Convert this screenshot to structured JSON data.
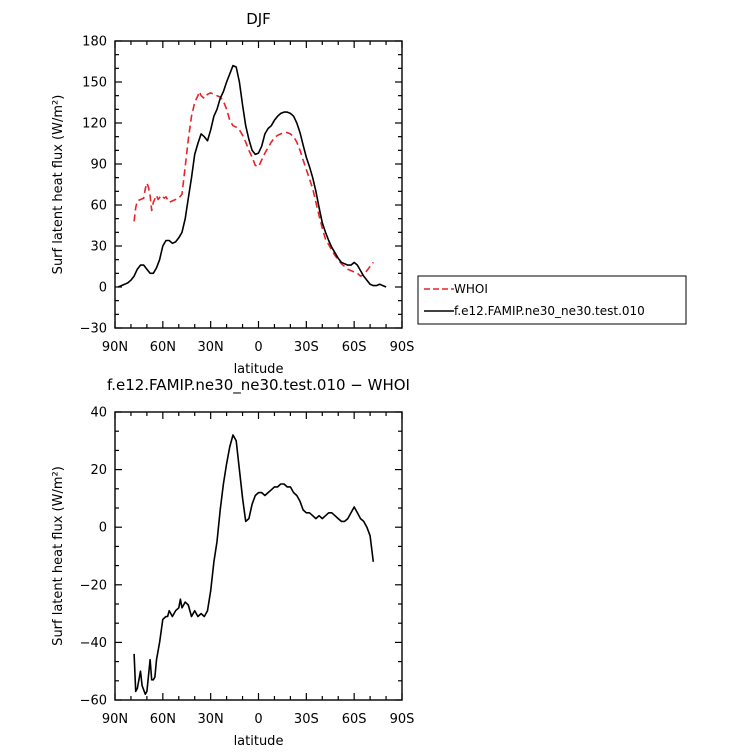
{
  "chart_data": [
    {
      "type": "line",
      "title": "DJF",
      "xlabel": "latitude",
      "ylabel": "Surf latent heat flux (W/m²)",
      "xlim": [
        -90,
        90
      ],
      "ylim": [
        -30,
        180
      ],
      "x_tick_values": [
        -90,
        -60,
        -30,
        0,
        30,
        60,
        90
      ],
      "x_tick_labels": [
        "90N",
        "60N",
        "30N",
        "0",
        "30S",
        "60S",
        "90S"
      ],
      "y_tick_values": [
        -30,
        0,
        30,
        60,
        90,
        120,
        150,
        180
      ],
      "y_tick_labels": [
        "−30",
        "0",
        "30",
        "60",
        "90",
        "120",
        "150",
        "180"
      ],
      "legend_position": "right",
      "series": [
        {
          "name": "WHOI",
          "color": "#e8232a",
          "dash": "dashed",
          "points": [
            [
              -78,
              48
            ],
            [
              -77,
              58
            ],
            [
              -76,
              63
            ],
            [
              -74,
              64
            ],
            [
              -72,
              65
            ],
            [
              -71,
              72
            ],
            [
              -70,
              76
            ],
            [
              -69,
              73
            ],
            [
              -68,
              67
            ],
            [
              -67,
              56
            ],
            [
              -66,
              62
            ],
            [
              -64,
              67
            ],
            [
              -63,
              64
            ],
            [
              -61,
              67
            ],
            [
              -59,
              65
            ],
            [
              -58,
              66
            ],
            [
              -56,
              62
            ],
            [
              -54,
              63
            ],
            [
              -52,
              64
            ],
            [
              -50,
              65
            ],
            [
              -48,
              68
            ],
            [
              -46,
              88
            ],
            [
              -44,
              108
            ],
            [
              -42,
              125
            ],
            [
              -40,
              135
            ],
            [
              -38,
              140
            ],
            [
              -37,
              143
            ],
            [
              -36,
              140
            ],
            [
              -34,
              138
            ],
            [
              -32,
              141
            ],
            [
              -30,
              142
            ],
            [
              -28,
              141
            ],
            [
              -26,
              140
            ],
            [
              -24,
              139
            ],
            [
              -22,
              136
            ],
            [
              -20,
              130
            ],
            [
              -18,
              122
            ],
            [
              -16,
              118
            ],
            [
              -14,
              117
            ],
            [
              -12,
              115
            ],
            [
              -10,
              111
            ],
            [
              -8,
              106
            ],
            [
              -6,
              100
            ],
            [
              -4,
              95
            ],
            [
              -2,
              89
            ],
            [
              0,
              88
            ],
            [
              2,
              93
            ],
            [
              4,
              98
            ],
            [
              6,
              102
            ],
            [
              8,
              106
            ],
            [
              10,
              109
            ],
            [
              12,
              111
            ],
            [
              14,
              112
            ],
            [
              16,
              113
            ],
            [
              18,
              113
            ],
            [
              20,
              112
            ],
            [
              22,
              110
            ],
            [
              24,
              106
            ],
            [
              26,
              100
            ],
            [
              28,
              93
            ],
            [
              30,
              86
            ],
            [
              32,
              79
            ],
            [
              34,
              72
            ],
            [
              36,
              62
            ],
            [
              38,
              52
            ],
            [
              40,
              43
            ],
            [
              42,
              35
            ],
            [
              44,
              31
            ],
            [
              46,
              27
            ],
            [
              48,
              23
            ],
            [
              50,
              20
            ],
            [
              52,
              17
            ],
            [
              54,
              15
            ],
            [
              56,
              13
            ],
            [
              58,
              12
            ],
            [
              60,
              11
            ],
            [
              62,
              10
            ],
            [
              64,
              8
            ],
            [
              66,
              9
            ],
            [
              68,
              12
            ],
            [
              70,
              15
            ],
            [
              72,
              18
            ]
          ]
        },
        {
          "name": "f.e12.FAMIP.ne30_ne30.test.010",
          "color": "#000000",
          "dash": "solid",
          "points": [
            [
              -88,
              0
            ],
            [
              -86,
              1
            ],
            [
              -84,
              2
            ],
            [
              -82,
              3
            ],
            [
              -80,
              5
            ],
            [
              -78,
              8
            ],
            [
              -76,
              13
            ],
            [
              -74,
              16
            ],
            [
              -72,
              16
            ],
            [
              -70,
              13
            ],
            [
              -68,
              10
            ],
            [
              -66,
              10
            ],
            [
              -64,
              14
            ],
            [
              -62,
              20
            ],
            [
              -60,
              30
            ],
            [
              -58,
              34
            ],
            [
              -56,
              34
            ],
            [
              -54,
              32
            ],
            [
              -52,
              33
            ],
            [
              -50,
              36
            ],
            [
              -48,
              40
            ],
            [
              -46,
              50
            ],
            [
              -44,
              65
            ],
            [
              -42,
              80
            ],
            [
              -40,
              97
            ],
            [
              -38,
              105
            ],
            [
              -36,
              112
            ],
            [
              -34,
              110
            ],
            [
              -32,
              107
            ],
            [
              -30,
              115
            ],
            [
              -28,
              125
            ],
            [
              -26,
              130
            ],
            [
              -24,
              138
            ],
            [
              -22,
              143
            ],
            [
              -20,
              150
            ],
            [
              -18,
              156
            ],
            [
              -16,
              162
            ],
            [
              -14,
              161
            ],
            [
              -12,
              150
            ],
            [
              -10,
              133
            ],
            [
              -8,
              118
            ],
            [
              -6,
              108
            ],
            [
              -4,
              100
            ],
            [
              -2,
              97
            ],
            [
              0,
              98
            ],
            [
              2,
              103
            ],
            [
              4,
              112
            ],
            [
              6,
              116
            ],
            [
              8,
              118
            ],
            [
              10,
              122
            ],
            [
              12,
              125
            ],
            [
              14,
              127
            ],
            [
              16,
              128
            ],
            [
              18,
              128
            ],
            [
              20,
              127
            ],
            [
              22,
              125
            ],
            [
              24,
              120
            ],
            [
              26,
              113
            ],
            [
              28,
              104
            ],
            [
              30,
              95
            ],
            [
              32,
              88
            ],
            [
              34,
              80
            ],
            [
              36,
              70
            ],
            [
              38,
              58
            ],
            [
              40,
              47
            ],
            [
              42,
              40
            ],
            [
              44,
              34
            ],
            [
              46,
              29
            ],
            [
              48,
              25
            ],
            [
              50,
              21
            ],
            [
              52,
              18
            ],
            [
              54,
              17
            ],
            [
              56,
              16
            ],
            [
              58,
              16
            ],
            [
              60,
              18
            ],
            [
              62,
              16
            ],
            [
              64,
              12
            ],
            [
              66,
              8
            ],
            [
              68,
              5
            ],
            [
              70,
              2
            ],
            [
              72,
              1
            ],
            [
              74,
              1
            ],
            [
              76,
              2
            ],
            [
              78,
              1
            ],
            [
              80,
              0
            ]
          ]
        }
      ]
    },
    {
      "type": "line",
      "title": "f.e12.FAMIP.ne30_ne30.test.010 − WHOI",
      "xlabel": "latitude",
      "ylabel": "Surf latent heat flux (W/m²)",
      "xlim": [
        -90,
        90
      ],
      "ylim": [
        -60,
        40
      ],
      "x_tick_values": [
        -90,
        -60,
        -30,
        0,
        30,
        60,
        90
      ],
      "x_tick_labels": [
        "90N",
        "60N",
        "30N",
        "0",
        "30S",
        "60S",
        "90S"
      ],
      "y_tick_values": [
        -60,
        -40,
        -20,
        0,
        20,
        40
      ],
      "y_tick_labels": [
        "−60",
        "−40",
        "−20",
        "0",
        "20",
        "40"
      ],
      "series": [
        {
          "color": "#000000",
          "dash": "solid",
          "points": [
            [
              -78,
              -44
            ],
            [
              -77,
              -57
            ],
            [
              -76,
              -56
            ],
            [
              -74,
              -50
            ],
            [
              -73,
              -55
            ],
            [
              -71,
              -58
            ],
            [
              -70,
              -57
            ],
            [
              -68,
              -46
            ],
            [
              -67,
              -53
            ],
            [
              -66,
              -53
            ],
            [
              -65,
              -52
            ],
            [
              -64,
              -46
            ],
            [
              -62,
              -40
            ],
            [
              -60,
              -32
            ],
            [
              -58,
              -31
            ],
            [
              -57,
              -31
            ],
            [
              -56,
              -29
            ],
            [
              -54,
              -31
            ],
            [
              -52,
              -29
            ],
            [
              -50,
              -28
            ],
            [
              -49,
              -25
            ],
            [
              -48,
              -28
            ],
            [
              -46,
              -26
            ],
            [
              -44,
              -27
            ],
            [
              -42,
              -31
            ],
            [
              -40,
              -29
            ],
            [
              -38,
              -31
            ],
            [
              -36,
              -30
            ],
            [
              -34,
              -31
            ],
            [
              -32,
              -29
            ],
            [
              -30,
              -22
            ],
            [
              -28,
              -12
            ],
            [
              -26,
              -5
            ],
            [
              -24,
              6
            ],
            [
              -22,
              15
            ],
            [
              -20,
              22
            ],
            [
              -18,
              28
            ],
            [
              -16,
              32
            ],
            [
              -14,
              30
            ],
            [
              -12,
              20
            ],
            [
              -10,
              10
            ],
            [
              -8,
              2
            ],
            [
              -6,
              3
            ],
            [
              -4,
              8
            ],
            [
              -2,
              11
            ],
            [
              0,
              12
            ],
            [
              2,
              12
            ],
            [
              4,
              11
            ],
            [
              6,
              12
            ],
            [
              8,
              13
            ],
            [
              10,
              14
            ],
            [
              12,
              14
            ],
            [
              14,
              15
            ],
            [
              16,
              15
            ],
            [
              18,
              14
            ],
            [
              20,
              14
            ],
            [
              22,
              12
            ],
            [
              24,
              11
            ],
            [
              26,
              9
            ],
            [
              28,
              6
            ],
            [
              30,
              5
            ],
            [
              32,
              5
            ],
            [
              34,
              4
            ],
            [
              36,
              3
            ],
            [
              38,
              4
            ],
            [
              40,
              3
            ],
            [
              42,
              4
            ],
            [
              44,
              5
            ],
            [
              46,
              5
            ],
            [
              48,
              4
            ],
            [
              50,
              3
            ],
            [
              52,
              2
            ],
            [
              54,
              2
            ],
            [
              56,
              3
            ],
            [
              58,
              5
            ],
            [
              60,
              7
            ],
            [
              62,
              5
            ],
            [
              64,
              3
            ],
            [
              66,
              2
            ],
            [
              68,
              0
            ],
            [
              70,
              -3
            ],
            [
              72,
              -12
            ]
          ]
        }
      ]
    }
  ]
}
